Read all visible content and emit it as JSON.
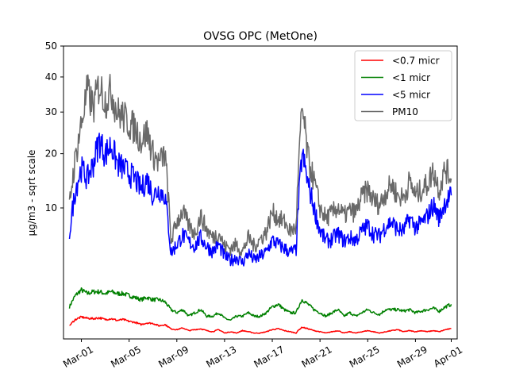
{
  "chart_data": {
    "type": "line",
    "title": "OVSG OPC (MetOne)",
    "xlabel": "",
    "ylabel": "µg/m3 - sqrt scale",
    "y_scale": "sqrt",
    "xlim": [
      "2023-02-27T12:00",
      "2023-04-01T12:00"
    ],
    "ylim": [
      0,
      50
    ],
    "yticks": [
      10,
      20,
      30,
      40,
      50
    ],
    "xticks": [
      {
        "date": "2023-03-01",
        "label": "Mar-01"
      },
      {
        "date": "2023-03-05",
        "label": "Mar-05"
      },
      {
        "date": "2023-03-09",
        "label": "Mar-09"
      },
      {
        "date": "2023-03-13",
        "label": "Mar-13"
      },
      {
        "date": "2023-03-17",
        "label": "Mar-17"
      },
      {
        "date": "2023-03-21",
        "label": "Mar-21"
      },
      {
        "date": "2023-03-25",
        "label": "Mar-25"
      },
      {
        "date": "2023-03-29",
        "label": "Mar-29"
      },
      {
        "date": "2023-04-01",
        "label": "Apr-01"
      }
    ],
    "legend_position": "top-right",
    "grid": false,
    "x": [
      "2023-02-28T00:00",
      "2023-02-28T12:00",
      "2023-03-01T00:00",
      "2023-03-01T12:00",
      "2023-03-02T00:00",
      "2023-03-02T12:00",
      "2023-03-03T00:00",
      "2023-03-03T12:00",
      "2023-03-04T00:00",
      "2023-03-04T12:00",
      "2023-03-05T00:00",
      "2023-03-05T12:00",
      "2023-03-06T00:00",
      "2023-03-06T12:00",
      "2023-03-07T00:00",
      "2023-03-07T12:00",
      "2023-03-08T00:00",
      "2023-03-08T12:00",
      "2023-03-09T00:00",
      "2023-03-09T12:00",
      "2023-03-10T00:00",
      "2023-03-10T12:00",
      "2023-03-11T00:00",
      "2023-03-11T12:00",
      "2023-03-12T00:00",
      "2023-03-12T12:00",
      "2023-03-13T00:00",
      "2023-03-13T12:00",
      "2023-03-14T00:00",
      "2023-03-14T12:00",
      "2023-03-15T00:00",
      "2023-03-15T12:00",
      "2023-03-16T00:00",
      "2023-03-16T12:00",
      "2023-03-17T00:00",
      "2023-03-17T12:00",
      "2023-03-18T00:00",
      "2023-03-18T12:00",
      "2023-03-19T00:00",
      "2023-03-19T12:00",
      "2023-03-20T00:00",
      "2023-03-20T12:00",
      "2023-03-21T00:00",
      "2023-03-21T12:00",
      "2023-03-22T00:00",
      "2023-03-22T12:00",
      "2023-03-23T00:00",
      "2023-03-23T12:00",
      "2023-03-24T00:00",
      "2023-03-24T12:00",
      "2023-03-25T00:00",
      "2023-03-25T12:00",
      "2023-03-26T00:00",
      "2023-03-26T12:00",
      "2023-03-27T00:00",
      "2023-03-27T12:00",
      "2023-03-28T00:00",
      "2023-03-28T12:00",
      "2023-03-29T00:00",
      "2023-03-29T12:00",
      "2023-03-30T00:00",
      "2023-03-30T12:00",
      "2023-03-31T00:00",
      "2023-03-31T12:00",
      "2023-04-01T00:00"
    ],
    "series": [
      {
        "name": "<0.7 micr",
        "color": "#ff0000",
        "values": [
          0.1,
          0.22,
          0.28,
          0.25,
          0.24,
          0.26,
          0.22,
          0.24,
          0.2,
          0.22,
          0.18,
          0.16,
          0.12,
          0.15,
          0.14,
          0.1,
          0.12,
          0.06,
          0.05,
          0.07,
          0.04,
          0.05,
          0.06,
          0.04,
          0.03,
          0.05,
          0.02,
          0.03,
          0.02,
          0.04,
          0.03,
          0.02,
          0.02,
          0.03,
          0.05,
          0.06,
          0.04,
          0.03,
          0.02,
          0.08,
          0.06,
          0.04,
          0.03,
          0.02,
          0.03,
          0.04,
          0.02,
          0.03,
          0.02,
          0.03,
          0.04,
          0.03,
          0.02,
          0.03,
          0.04,
          0.05,
          0.03,
          0.04,
          0.03,
          0.04,
          0.03,
          0.04,
          0.03,
          0.05,
          0.06
        ]
      },
      {
        "name": "<1 micr",
        "color": "#008000",
        "values": [
          0.6,
          1.1,
          1.4,
          1.2,
          1.3,
          1.3,
          1.2,
          1.3,
          1.2,
          1.2,
          1.1,
          1.0,
          0.9,
          1.0,
          0.9,
          0.9,
          0.8,
          0.5,
          0.4,
          0.5,
          0.3,
          0.4,
          0.5,
          0.3,
          0.3,
          0.4,
          0.25,
          0.2,
          0.3,
          0.3,
          0.4,
          0.3,
          0.3,
          0.4,
          0.6,
          0.7,
          0.5,
          0.4,
          0.4,
          0.9,
          0.7,
          0.5,
          0.4,
          0.3,
          0.4,
          0.5,
          0.3,
          0.4,
          0.3,
          0.4,
          0.5,
          0.4,
          0.35,
          0.5,
          0.5,
          0.5,
          0.45,
          0.5,
          0.4,
          0.45,
          0.5,
          0.55,
          0.45,
          0.6,
          0.7
        ]
      },
      {
        "name": "<5 micr",
        "color": "#0000ff",
        "values": [
          6.5,
          13.0,
          17.0,
          15.0,
          18.0,
          23.0,
          20.0,
          22.0,
          18.0,
          17.0,
          16.0,
          15.0,
          13.0,
          15.0,
          12.0,
          13.0,
          12.0,
          4.3,
          5.2,
          6.3,
          5.5,
          5.0,
          6.0,
          5.0,
          4.5,
          5.2,
          4.0,
          3.6,
          3.9,
          3.4,
          4.3,
          3.6,
          4.0,
          4.4,
          5.7,
          5.2,
          4.8,
          4.4,
          4.6,
          20.0,
          14.0,
          10.0,
          6.8,
          5.6,
          5.8,
          6.5,
          5.6,
          6.0,
          5.7,
          6.8,
          7.5,
          6.4,
          6.2,
          7.5,
          8.0,
          7.0,
          6.8,
          8.5,
          7.3,
          7.8,
          8.8,
          10.5,
          8.5,
          11.0,
          12.0
        ]
      },
      {
        "name": "PM10",
        "color": "#696969",
        "values": [
          10.5,
          19.0,
          27.0,
          36.0,
          31.0,
          38.0,
          33.0,
          36.0,
          30.0,
          29.0,
          27.0,
          26.0,
          23.0,
          25.0,
          20.0,
          18.0,
          20.0,
          5.5,
          8.0,
          9.5,
          7.5,
          6.5,
          8.8,
          7.0,
          6.0,
          6.6,
          5.0,
          4.8,
          5.2,
          4.4,
          6.0,
          5.0,
          5.8,
          6.7,
          9.4,
          8.5,
          8.0,
          6.8,
          7.2,
          31.0,
          19.0,
          14.5,
          10.0,
          8.5,
          9.2,
          10.2,
          8.8,
          9.6,
          9.3,
          11.8,
          13.0,
          11.2,
          10.5,
          12.5,
          14.0,
          12.0,
          11.6,
          14.5,
          12.0,
          13.0,
          14.0,
          16.5,
          13.0,
          17.0,
          15.0
        ]
      }
    ]
  }
}
